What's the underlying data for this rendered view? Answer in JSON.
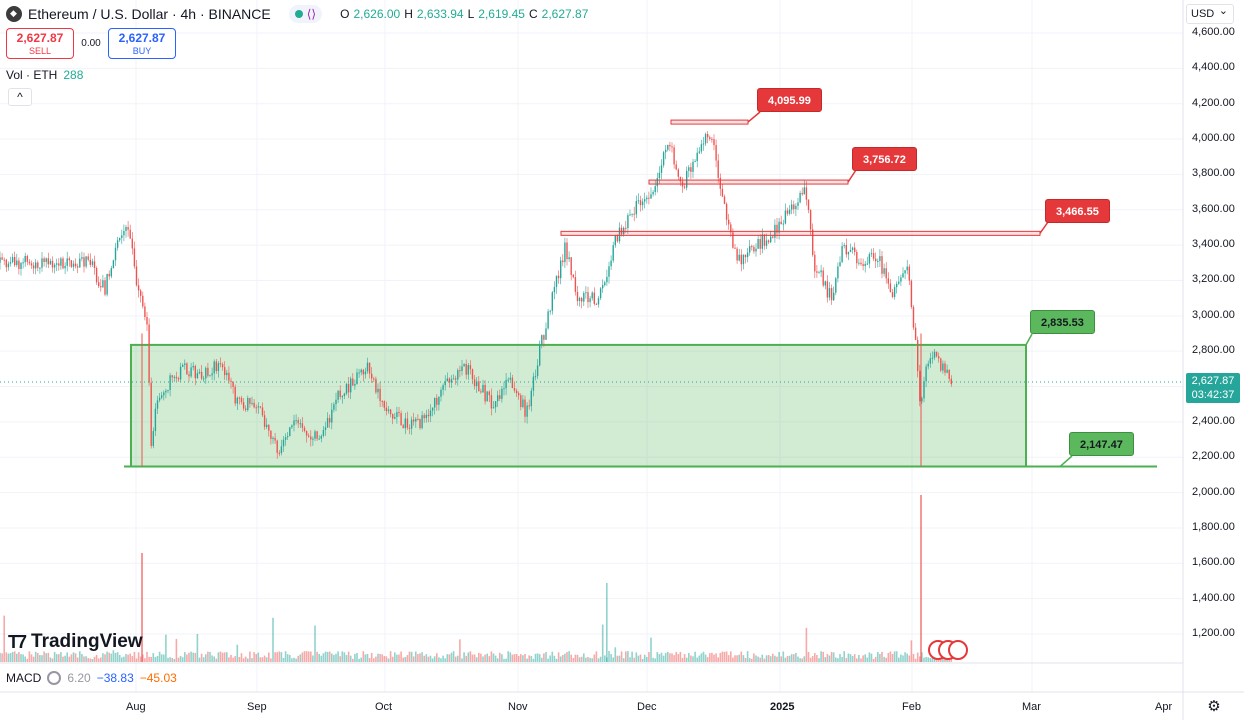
{
  "symbol": {
    "title": "Ethereum / U.S. Dollar · 4h · BINANCE",
    "ohlc": [
      {
        "label": "O",
        "value": "2,626.00"
      },
      {
        "label": "H",
        "value": "2,633.94"
      },
      {
        "label": "L",
        "value": "2,619.45"
      },
      {
        "label": "C",
        "value": "2,627.87"
      }
    ]
  },
  "trade": {
    "sell_price": "2,627.87",
    "sell_label": "SELL",
    "spread": "0.00",
    "buy_price": "2,627.87",
    "buy_label": "BUY"
  },
  "volume": {
    "label": "Vol · ETH",
    "value": "288"
  },
  "macd": {
    "label": "MACD",
    "v1": "6.20",
    "v2": "−38.83",
    "v3": "−45.03"
  },
  "currency": "USD",
  "price_tag": {
    "price": "2,627.87",
    "countdown": "03:42:37"
  },
  "logo_text": "TradingView",
  "y_axis_labels": [
    "4,600.00",
    "4,400.00",
    "4,200.00",
    "4,000.00",
    "3,800.00",
    "3,600.00",
    "3,400.00",
    "3,200.00",
    "3,000.00",
    "2,800.00",
    "2,600.00",
    "2,400.00",
    "2,200.00",
    "2,000.00",
    "1,800.00",
    "1,600.00",
    "1,400.00",
    "1,200.00"
  ],
  "x_axis_labels": [
    {
      "label": "Aug",
      "bold": false
    },
    {
      "label": "Sep",
      "bold": false
    },
    {
      "label": "Oct",
      "bold": false
    },
    {
      "label": "Nov",
      "bold": false
    },
    {
      "label": "Dec",
      "bold": false
    },
    {
      "label": "2025",
      "bold": true
    },
    {
      "label": "Feb",
      "bold": false
    },
    {
      "label": "Mar",
      "bold": false
    },
    {
      "label": "Apr",
      "bold": false
    }
  ],
  "annotations": {
    "resistance_1": "4,095.99",
    "resistance_2": "3,756.72",
    "resistance_3": "3,466.55",
    "range_top": "2,835.53",
    "range_bottom": "2,147.47"
  },
  "chart_data": {
    "type": "candlestick",
    "title": "Ethereum / U.S. Dollar · 4h · BINANCE",
    "price_points": [
      [
        "Jul 20",
        3300
      ],
      [
        "Jul 24",
        3150
      ],
      [
        "Jul 28",
        3480
      ],
      [
        "Jul 30",
        3520
      ],
      [
        "Aug 1",
        3200
      ],
      [
        "Aug 4",
        2900
      ],
      [
        "Aug 5",
        2200
      ],
      [
        "Aug 6",
        2500
      ],
      [
        "Aug 10",
        2650
      ],
      [
        "Aug 14",
        2700
      ],
      [
        "Aug 18",
        2650
      ],
      [
        "Aug 23",
        2750
      ],
      [
        "Aug 27",
        2500
      ],
      [
        "Sep 1",
        2500
      ],
      [
        "Sep 6",
        2250
      ],
      [
        "Sep 10",
        2400
      ],
      [
        "Sep 16",
        2300
      ],
      [
        "Sep 20",
        2550
      ],
      [
        "Sep 27",
        2700
      ],
      [
        "Oct 1",
        2500
      ],
      [
        "Oct 5",
        2400
      ],
      [
        "Oct 10",
        2400
      ],
      [
        "Oct 15",
        2600
      ],
      [
        "Oct 20",
        2700
      ],
      [
        "Oct 26",
        2500
      ],
      [
        "Oct 30",
        2650
      ],
      [
        "Nov 3",
        2450
      ],
      [
        "Nov 6",
        2800
      ],
      [
        "Nov 10",
        3200
      ],
      [
        "Nov 12",
        3400
      ],
      [
        "Nov 15",
        3100
      ],
      [
        "Nov 20",
        3100
      ],
      [
        "Nov 24",
        3450
      ],
      [
        "Nov 28",
        3600
      ],
      [
        "Dec 2",
        3700
      ],
      [
        "Dec 6",
        4000
      ],
      [
        "Dec 9",
        3700
      ],
      [
        "Dec 12",
        3900
      ],
      [
        "Dec 16",
        4050
      ],
      [
        "Dec 19",
        3600
      ],
      [
        "Dec 22",
        3300
      ],
      [
        "Dec 26",
        3400
      ],
      [
        "Dec 30",
        3450
      ],
      [
        "Jan 3",
        3600
      ],
      [
        "Jan 7",
        3700
      ],
      [
        "Jan 9",
        3300
      ],
      [
        "Jan 13",
        3100
      ],
      [
        "Jan 16",
        3400
      ],
      [
        "Jan 20",
        3300
      ],
      [
        "Jan 24",
        3350
      ],
      [
        "Jan 27",
        3100
      ],
      [
        "Jan 31",
        3300
      ],
      [
        "Feb 2",
        2800
      ],
      [
        "Feb 3",
        2500
      ],
      [
        "Feb 5",
        2800
      ],
      [
        "Feb 8",
        2700
      ],
      [
        "Feb 10",
        2630
      ]
    ],
    "horizontal_levels": [
      4095.99,
      3756.72,
      3466.55
    ],
    "range_box": {
      "top": 2835.53,
      "bottom": 2147.47,
      "start": "Aug 5",
      "end": "Feb 12"
    },
    "last_price": 2627.87,
    "y_range": [
      1100,
      4700
    ],
    "x_ticks": [
      "Aug",
      "Sep",
      "Oct",
      "Nov",
      "Dec",
      "2025",
      "Feb",
      "Mar",
      "Apr"
    ],
    "grid": true
  }
}
